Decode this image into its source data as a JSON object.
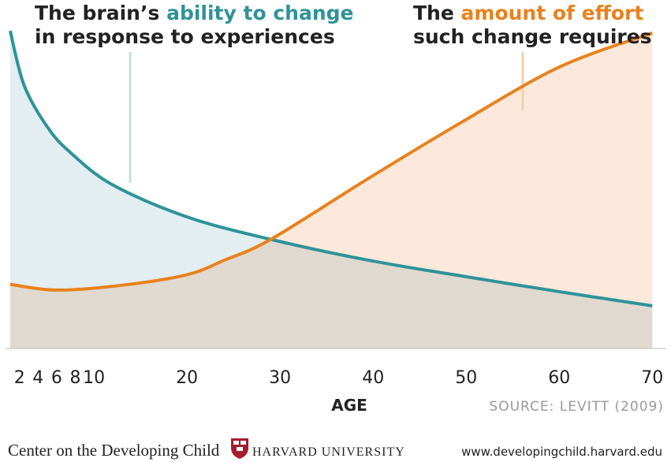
{
  "chart_data": {
    "type": "line",
    "series": [
      {
        "label_lines": [
          "The brain’s",
          "ability to change",
          "in response to experiences"
        ],
        "color": "#2e9398",
        "fill": "#e2eef2",
        "x": [
          1,
          2.5,
          5,
          7.5,
          12,
          20,
          29,
          39.5,
          49.5,
          60,
          70
        ],
        "values": [
          99,
          82,
          69,
          61,
          51,
          41,
          34,
          27.5,
          22.6,
          17.7,
          13.3
        ]
      },
      {
        "label_lines": [
          "The",
          "amount of effort",
          "such change requires"
        ],
        "color": "#e8821e",
        "fill": "#fde9dc",
        "x": [
          1,
          6,
          13,
          20,
          24,
          29,
          39.5,
          49.5,
          60,
          70
        ],
        "values": [
          20,
          18.2,
          19.7,
          23,
          27.5,
          34,
          53,
          70.5,
          87.7,
          98.3
        ]
      }
    ],
    "xlim": [
      0.5,
      71.5
    ],
    "ylim": [
      0,
      100
    ],
    "xticks": [
      2,
      4,
      6,
      8,
      10,
      20,
      30,
      40,
      50,
      60,
      70
    ],
    "xlabel": "AGE",
    "source": "SOURCE: LEVITT (2009)"
  },
  "footer": {
    "left": "Center on the Developing Child",
    "university": "HARVARD UNIVERSITY",
    "url": "www.developingchild.harvard.edu"
  }
}
